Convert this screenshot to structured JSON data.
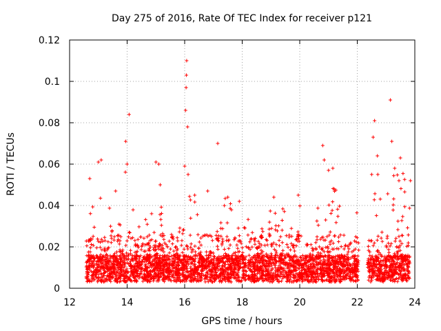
{
  "chart_data": {
    "type": "scatter",
    "title": "Day 275 of 2016, Rate Of TEC Index for receiver p121",
    "xlabel": "GPS time / hours",
    "ylabel": "ROTI / TECUs",
    "xlim": [
      12,
      24
    ],
    "ylim": [
      0,
      0.12
    ],
    "xticks": [
      12,
      14,
      16,
      18,
      20,
      22,
      24
    ],
    "xtick_labels": [
      "12",
      "14",
      "16",
      "18",
      "20",
      "22",
      "24"
    ],
    "yticks": [
      0,
      0.02,
      0.04,
      0.06,
      0.08,
      0.1,
      0.12
    ],
    "ytick_labels": [
      "0",
      "0.02",
      "0.04",
      "0.06",
      "0.08",
      "0.1",
      "0.12"
    ],
    "grid": true,
    "marker": "+",
    "color": "#ff0000",
    "data_gaps_hours": [
      [
        18.15,
        18.2
      ],
      [
        22.05,
        22.35
      ],
      [
        23.85,
        24
      ]
    ],
    "envelope": [
      {
        "x": 12.6,
        "ymax": 0.022
      },
      {
        "x": 12.7,
        "ymax": 0.05
      },
      {
        "x": 12.8,
        "ymax": 0.04
      },
      {
        "x": 13.0,
        "ymax": 0.06
      },
      {
        "x": 13.2,
        "ymax": 0.045
      },
      {
        "x": 13.5,
        "ymax": 0.038
      },
      {
        "x": 13.8,
        "ymax": 0.048
      },
      {
        "x": 14.0,
        "ymax": 0.065
      },
      {
        "x": 14.3,
        "ymax": 0.03
      },
      {
        "x": 14.7,
        "ymax": 0.035
      },
      {
        "x": 15.0,
        "ymax": 0.06
      },
      {
        "x": 15.3,
        "ymax": 0.03
      },
      {
        "x": 15.7,
        "ymax": 0.022
      },
      {
        "x": 16.0,
        "ymax": 0.045
      },
      {
        "x": 16.3,
        "ymax": 0.045
      },
      {
        "x": 16.6,
        "ymax": 0.03
      },
      {
        "x": 17.0,
        "ymax": 0.025
      },
      {
        "x": 17.4,
        "ymax": 0.045
      },
      {
        "x": 17.8,
        "ymax": 0.04
      },
      {
        "x": 18.1,
        "ymax": 0.04
      },
      {
        "x": 18.5,
        "ymax": 0.02
      },
      {
        "x": 19.0,
        "ymax": 0.044
      },
      {
        "x": 19.4,
        "ymax": 0.04
      },
      {
        "x": 19.8,
        "ymax": 0.03
      },
      {
        "x": 20.0,
        "ymax": 0.044
      },
      {
        "x": 20.4,
        "ymax": 0.025
      },
      {
        "x": 20.8,
        "ymax": 0.065
      },
      {
        "x": 21.2,
        "ymax": 0.055
      },
      {
        "x": 21.6,
        "ymax": 0.03
      },
      {
        "x": 22.0,
        "ymax": 0.04
      },
      {
        "x": 22.4,
        "ymax": 0.04
      },
      {
        "x": 22.6,
        "ymax": 0.075
      },
      {
        "x": 22.9,
        "ymax": 0.03
      },
      {
        "x": 23.2,
        "ymax": 0.06
      },
      {
        "x": 23.5,
        "ymax": 0.06
      },
      {
        "x": 23.8,
        "ymax": 0.052
      }
    ],
    "spikes": [
      {
        "x": 12.7,
        "y": 0.053
      },
      {
        "x": 13.0,
        "y": 0.061
      },
      {
        "x": 13.1,
        "y": 0.062
      },
      {
        "x": 13.6,
        "y": 0.047
      },
      {
        "x": 13.95,
        "y": 0.071
      },
      {
        "x": 14.0,
        "y": 0.06
      },
      {
        "x": 14.07,
        "y": 0.084
      },
      {
        "x": 15.0,
        "y": 0.061
      },
      {
        "x": 15.1,
        "y": 0.06
      },
      {
        "x": 15.15,
        "y": 0.05
      },
      {
        "x": 16.0,
        "y": 0.059
      },
      {
        "x": 16.03,
        "y": 0.086
      },
      {
        "x": 16.05,
        "y": 0.097
      },
      {
        "x": 16.06,
        "y": 0.103
      },
      {
        "x": 16.07,
        "y": 0.11
      },
      {
        "x": 16.1,
        "y": 0.078
      },
      {
        "x": 16.12,
        "y": 0.055
      },
      {
        "x": 16.35,
        "y": 0.045
      },
      {
        "x": 16.8,
        "y": 0.047
      },
      {
        "x": 17.15,
        "y": 0.07
      },
      {
        "x": 17.5,
        "y": 0.044
      },
      {
        "x": 17.9,
        "y": 0.042
      },
      {
        "x": 19.1,
        "y": 0.044
      },
      {
        "x": 19.95,
        "y": 0.045
      },
      {
        "x": 20.8,
        "y": 0.069
      },
      {
        "x": 20.85,
        "y": 0.062
      },
      {
        "x": 21.0,
        "y": 0.057
      },
      {
        "x": 21.15,
        "y": 0.058
      },
      {
        "x": 21.2,
        "y": 0.048
      },
      {
        "x": 22.5,
        "y": 0.055
      },
      {
        "x": 22.55,
        "y": 0.073
      },
      {
        "x": 22.6,
        "y": 0.081
      },
      {
        "x": 22.7,
        "y": 0.064
      },
      {
        "x": 23.15,
        "y": 0.091
      },
      {
        "x": 23.2,
        "y": 0.071
      },
      {
        "x": 23.3,
        "y": 0.058
      },
      {
        "x": 23.5,
        "y": 0.063
      },
      {
        "x": 23.45,
        "y": 0.052
      },
      {
        "x": 23.85,
        "y": 0.052
      }
    ]
  }
}
